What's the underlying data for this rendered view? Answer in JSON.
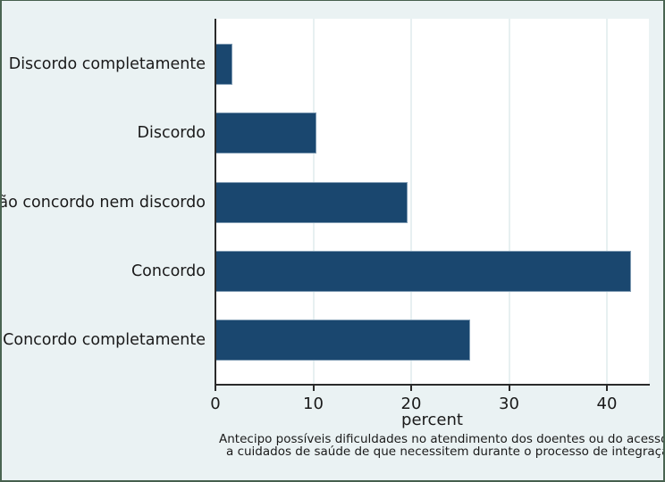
{
  "chart_data": {
    "type": "bar",
    "orientation": "horizontal",
    "title": "",
    "categories": [
      "Discordo completamente",
      "Discordo",
      "Não concordo nem discordo",
      "Concordo",
      "Concordo completamente"
    ],
    "values": [
      1.7,
      10.3,
      19.6,
      42.5,
      26.0
    ],
    "xlabel": "percent",
    "ylabel": "",
    "x_ticks": [
      0,
      10,
      20,
      30,
      40
    ],
    "xlim": [
      0,
      44.3
    ],
    "grid": true,
    "legend": "none",
    "caption_line1": "Antecipo possíveis dificuldades no atendimento dos doentes ou do acesso",
    "caption_line2": "a cuidados de saúde de que necessitem durante o processo de integração",
    "colors": {
      "bar": "#1a476f",
      "figure_background": "#eaf2f3",
      "plot_background": "#ffffff",
      "gridline": "#e7f0f1",
      "axis": "#2b2b2b",
      "frame_border": "#4a6552",
      "text": "#1a1a1a"
    }
  }
}
